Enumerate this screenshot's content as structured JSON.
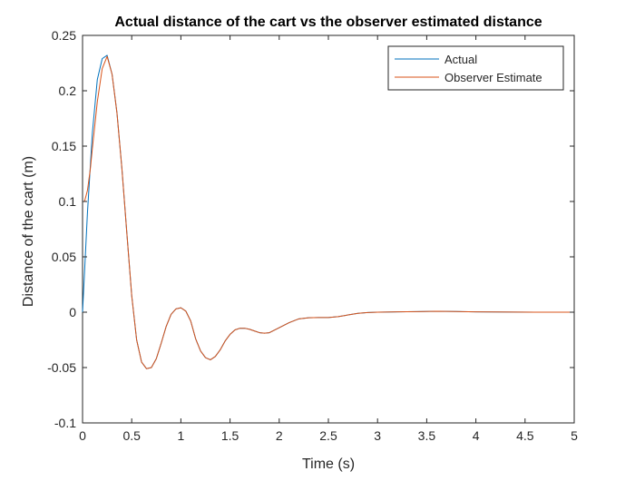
{
  "chart_data": {
    "type": "line",
    "title": "Actual distance of the cart vs the observer estimated distance",
    "xlabel": "Time (s)",
    "ylabel": "Distance of the cart (m)",
    "xlim": [
      0,
      5
    ],
    "ylim": [
      -0.1,
      0.25
    ],
    "xticks": [
      0,
      0.5,
      1,
      1.5,
      2,
      2.5,
      3,
      3.5,
      4,
      4.5,
      5
    ],
    "xtick_labels": [
      "0",
      "0.5",
      "1",
      "1.5",
      "2",
      "2.5",
      "3",
      "3.5",
      "4",
      "4.5",
      "5"
    ],
    "yticks": [
      -0.1,
      -0.05,
      0,
      0.05,
      0.1,
      0.15,
      0.2,
      0.25
    ],
    "ytick_labels": [
      "-0.1",
      "-0.05",
      "0",
      "0.05",
      "0.1",
      "0.15",
      "0.2",
      "0.25"
    ],
    "grid": false,
    "legend_position": "top-right",
    "series": [
      {
        "name": "Actual",
        "color": "#0072BD",
        "x": [
          0,
          0.05,
          0.1,
          0.15,
          0.2,
          0.25,
          0.3,
          0.35,
          0.4,
          0.45,
          0.5,
          0.55,
          0.6,
          0.65,
          0.7,
          0.75,
          0.8,
          0.85,
          0.9,
          0.95,
          1.0,
          1.05,
          1.1,
          1.15,
          1.2,
          1.25,
          1.3,
          1.35,
          1.4,
          1.45,
          1.5,
          1.55,
          1.6,
          1.65,
          1.7,
          1.75,
          1.8,
          1.85,
          1.9,
          2.0,
          2.1,
          2.2,
          2.3,
          2.4,
          2.5,
          2.6,
          2.7,
          2.8,
          2.9,
          3.0,
          3.2,
          3.4,
          3.6,
          3.8,
          4.0,
          4.2,
          4.4,
          4.6,
          4.8,
          5.0
        ],
        "y": [
          0,
          0.09,
          0.162,
          0.21,
          0.229,
          0.232,
          0.215,
          0.18,
          0.13,
          0.072,
          0.015,
          -0.025,
          -0.045,
          -0.051,
          -0.05,
          -0.042,
          -0.028,
          -0.013,
          -0.002,
          0.003,
          0.004,
          0.001,
          -0.008,
          -0.024,
          -0.035,
          -0.041,
          -0.043,
          -0.04,
          -0.034,
          -0.026,
          -0.02,
          -0.016,
          -0.0145,
          -0.0145,
          -0.0155,
          -0.017,
          -0.0185,
          -0.019,
          -0.0185,
          -0.014,
          -0.0095,
          -0.006,
          -0.005,
          -0.0048,
          -0.0048,
          -0.004,
          -0.0025,
          -0.001,
          -0.0003,
          0,
          0.0003,
          0.0005,
          0.0008,
          0.0006,
          0.0003,
          0.0002,
          0.0001,
          0,
          0,
          0
        ]
      },
      {
        "name": "Observer Estimate",
        "color": "#D95319",
        "x": [
          0,
          0.02,
          0.05,
          0.08,
          0.1,
          0.15,
          0.2,
          0.25,
          0.3,
          0.35,
          0.4,
          0.45,
          0.5,
          0.55,
          0.6,
          0.65,
          0.7,
          0.75,
          0.8,
          0.85,
          0.9,
          0.95,
          1.0,
          1.05,
          1.1,
          1.15,
          1.2,
          1.25,
          1.3,
          1.35,
          1.4,
          1.45,
          1.5,
          1.55,
          1.6,
          1.65,
          1.7,
          1.75,
          1.8,
          1.85,
          1.9,
          2.0,
          2.1,
          2.2,
          2.3,
          2.4,
          2.5,
          2.6,
          2.7,
          2.8,
          2.9,
          3.0,
          3.2,
          3.4,
          3.6,
          3.8,
          4.0,
          4.2,
          4.4,
          4.6,
          4.8,
          5.0
        ],
        "y": [
          0.1,
          0.1,
          0.11,
          0.13,
          0.148,
          0.19,
          0.22,
          0.231,
          0.215,
          0.18,
          0.13,
          0.072,
          0.015,
          -0.025,
          -0.045,
          -0.051,
          -0.05,
          -0.042,
          -0.028,
          -0.013,
          -0.002,
          0.003,
          0.004,
          0.001,
          -0.008,
          -0.024,
          -0.035,
          -0.041,
          -0.043,
          -0.04,
          -0.034,
          -0.026,
          -0.02,
          -0.016,
          -0.0145,
          -0.0145,
          -0.0155,
          -0.017,
          -0.0185,
          -0.019,
          -0.0185,
          -0.014,
          -0.0095,
          -0.006,
          -0.005,
          -0.0048,
          -0.0048,
          -0.004,
          -0.0025,
          -0.001,
          -0.0003,
          0,
          0.0003,
          0.0005,
          0.0008,
          0.0006,
          0.0003,
          0.0002,
          0.0001,
          0,
          0,
          0
        ]
      }
    ],
    "overlap_color": "#7E2F8E",
    "axis_color": "#262626"
  }
}
